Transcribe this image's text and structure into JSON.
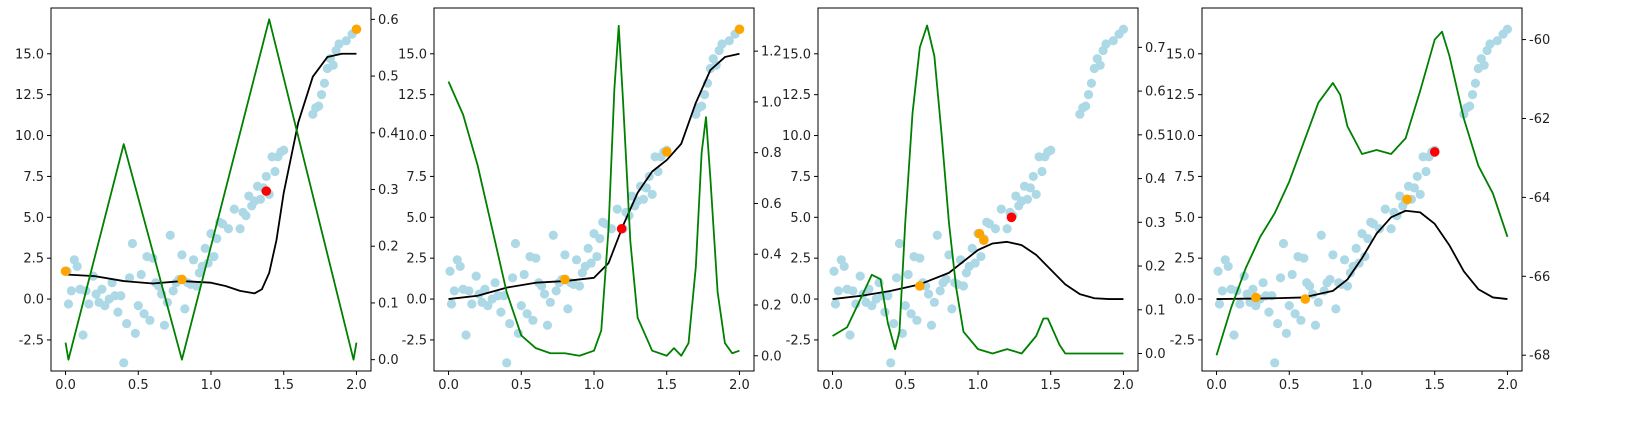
{
  "chart_data": [
    {
      "type": "scatter",
      "title": "",
      "xlabel": "",
      "ylabel": "",
      "xlim": [
        -0.1,
        2.1
      ],
      "ylim": [
        -4.4,
        17.8
      ],
      "y2lim": [
        -0.02,
        0.62
      ],
      "xticks": [
        "0.0",
        "0.5",
        "1.0",
        "1.5",
        "2.0"
      ],
      "yticks": [
        "-2.5",
        "0.0",
        "2.5",
        "5.0",
        "7.5",
        "10.0",
        "12.5",
        "15.0"
      ],
      "y2ticks": [
        "0.0",
        "0.1",
        "0.2",
        "0.3",
        "0.4",
        "0.5",
        "0.6"
      ],
      "xtick_values": [
        0,
        0.5,
        1,
        1.5,
        2
      ],
      "ytick_values": [
        -2.5,
        0,
        2.5,
        5,
        7.5,
        10,
        12.5,
        15
      ],
      "y2tick_values": [
        0,
        0.1,
        0.2,
        0.3,
        0.4,
        0.5,
        0.6
      ],
      "mean_curve": {
        "color": "#000000",
        "x": [
          0,
          0.2,
          0.4,
          0.6,
          0.8,
          1.0,
          1.1,
          1.2,
          1.3,
          1.35,
          1.4,
          1.45,
          1.5,
          1.6,
          1.7,
          1.8,
          1.9,
          2.0
        ],
        "y": [
          1.5,
          1.4,
          1.1,
          0.95,
          1.1,
          1.0,
          0.8,
          0.5,
          0.35,
          0.6,
          1.6,
          3.6,
          6.5,
          10.8,
          13.6,
          14.8,
          15.0,
          15.0
        ]
      },
      "acquisition_curve": {
        "color": "#008000",
        "axis": "right",
        "x": [
          0,
          0.02,
          0.4,
          0.8,
          1.4,
          1.98,
          2.0
        ],
        "y": [
          0.03,
          0.0,
          0.38,
          0.0,
          0.6,
          0.0,
          0.03
        ]
      },
      "observed_points": {
        "color": "#ffa500",
        "x": [
          0.0,
          0.8,
          2.0
        ],
        "y": [
          1.7,
          1.2,
          16.5
        ]
      },
      "next_point": {
        "color": "#ff0000",
        "x": [
          1.38
        ],
        "y": [
          6.6
        ]
      }
    },
    {
      "type": "scatter",
      "title": "",
      "xlabel": "",
      "ylabel": "",
      "xlim": [
        -0.1,
        2.1
      ],
      "ylim": [
        -4.4,
        17.8
      ],
      "y2lim": [
        -0.06,
        1.37
      ],
      "xticks": [
        "0.0",
        "0.5",
        "1.0",
        "1.5",
        "2.0"
      ],
      "yticks": [
        "-2.5",
        "0.0",
        "2.5",
        "5.0",
        "7.5",
        "10.0",
        "12.5",
        "15.0"
      ],
      "y2ticks": [
        "0.0",
        "0.2",
        "0.4",
        "0.6",
        "0.8",
        "1.0",
        "1.2"
      ],
      "xtick_values": [
        0,
        0.5,
        1,
        1.5,
        2
      ],
      "ytick_values": [
        -2.5,
        0,
        2.5,
        5,
        7.5,
        10,
        12.5,
        15
      ],
      "y2tick_values": [
        0,
        0.2,
        0.4,
        0.6,
        0.8,
        1.0,
        1.2
      ],
      "mean_curve": {
        "color": "#000000",
        "x": [
          0,
          0.2,
          0.4,
          0.6,
          0.8,
          1.0,
          1.1,
          1.2,
          1.3,
          1.4,
          1.5,
          1.6,
          1.7,
          1.8,
          1.9,
          2.0
        ],
        "y": [
          0.0,
          0.2,
          0.7,
          1.0,
          1.1,
          1.3,
          2.2,
          4.5,
          6.5,
          7.8,
          8.5,
          9.5,
          12.0,
          14.0,
          14.8,
          15.0
        ]
      },
      "acquisition_curve": {
        "color": "#008000",
        "axis": "right",
        "x": [
          0,
          0.1,
          0.2,
          0.3,
          0.4,
          0.5,
          0.6,
          0.7,
          0.8,
          0.9,
          1.0,
          1.05,
          1.1,
          1.14,
          1.17,
          1.2,
          1.25,
          1.3,
          1.4,
          1.5,
          1.55,
          1.6,
          1.65,
          1.7,
          1.74,
          1.77,
          1.8,
          1.85,
          1.9,
          1.95,
          2.0
        ],
        "y": [
          1.08,
          0.95,
          0.75,
          0.5,
          0.25,
          0.08,
          0.03,
          0.01,
          0.01,
          0.0,
          0.02,
          0.1,
          0.5,
          1.05,
          1.3,
          1.0,
          0.45,
          0.15,
          0.02,
          0.0,
          0.03,
          0.0,
          0.05,
          0.35,
          0.8,
          0.94,
          0.7,
          0.25,
          0.05,
          0.01,
          0.02
        ]
      },
      "observed_points": {
        "color": "#ffa500",
        "x": [
          0.8,
          1.5,
          2.0
        ],
        "y": [
          1.2,
          9.0,
          16.5
        ]
      },
      "next_point": {
        "color": "#ff0000",
        "x": [
          1.19
        ],
        "y": [
          4.3
        ]
      }
    },
    {
      "type": "scatter",
      "title": "",
      "xlabel": "",
      "ylabel": "",
      "xlim": [
        -0.1,
        2.1
      ],
      "ylim": [
        -4.4,
        17.8
      ],
      "y2lim": [
        -0.04,
        0.79
      ],
      "xticks": [
        "0.0",
        "0.5",
        "1.0",
        "1.5",
        "2.0"
      ],
      "yticks": [
        "-2.5",
        "0.0",
        "2.5",
        "5.0",
        "7.5",
        "10.0",
        "12.5",
        "15.0"
      ],
      "y2ticks": [
        "0.0",
        "0.1",
        "0.2",
        "0.3",
        "0.4",
        "0.5",
        "0.6",
        "0.7"
      ],
      "xtick_values": [
        0,
        0.5,
        1,
        1.5,
        2
      ],
      "ytick_values": [
        -2.5,
        0,
        2.5,
        5,
        7.5,
        10,
        12.5,
        15
      ],
      "y2tick_values": [
        0,
        0.1,
        0.2,
        0.3,
        0.4,
        0.5,
        0.6,
        0.7
      ],
      "mean_curve": {
        "color": "#000000",
        "x": [
          0,
          0.2,
          0.4,
          0.6,
          0.8,
          0.9,
          1.0,
          1.1,
          1.2,
          1.3,
          1.4,
          1.5,
          1.6,
          1.7,
          1.8,
          1.9,
          2.0
        ],
        "y": [
          0.0,
          0.2,
          0.5,
          0.9,
          1.6,
          2.3,
          3.0,
          3.4,
          3.5,
          3.3,
          2.7,
          1.8,
          0.9,
          0.3,
          0.05,
          0.0,
          0.0
        ]
      },
      "acquisition_curve": {
        "color": "#008000",
        "axis": "right",
        "x": [
          0,
          0.1,
          0.2,
          0.27,
          0.33,
          0.38,
          0.43,
          0.46,
          0.5,
          0.55,
          0.6,
          0.65,
          0.7,
          0.75,
          0.8,
          0.85,
          0.9,
          1.0,
          1.1,
          1.2,
          1.3,
          1.4,
          1.45,
          1.48,
          1.52,
          1.56,
          1.6,
          1.7,
          1.8,
          1.9,
          2.0
        ],
        "y": [
          0.04,
          0.06,
          0.13,
          0.18,
          0.17,
          0.07,
          0.01,
          0.05,
          0.3,
          0.55,
          0.7,
          0.75,
          0.68,
          0.5,
          0.3,
          0.15,
          0.05,
          0.01,
          0.0,
          0.01,
          0.0,
          0.04,
          0.08,
          0.08,
          0.05,
          0.02,
          0.0,
          0.0,
          0.0,
          0.0,
          0.0
        ]
      },
      "observed_points": {
        "color": "#ffa500",
        "x": [
          0.6,
          1.01,
          1.04
        ],
        "y": [
          0.8,
          4.0,
          3.6
        ]
      },
      "next_point": {
        "color": "#ff0000",
        "x": [
          1.23
        ],
        "y": [
          5.0
        ]
      }
    },
    {
      "type": "scatter",
      "title": "",
      "xlabel": "",
      "ylabel": "",
      "xlim": [
        -0.1,
        2.1
      ],
      "ylim": [
        -4.4,
        17.8
      ],
      "y2lim": [
        -68.4,
        -59.2
      ],
      "xticks": [
        "0.0",
        "0.5",
        "1.0",
        "1.5",
        "2.0"
      ],
      "yticks": [
        "-2.5",
        "0.0",
        "2.5",
        "5.0",
        "7.5",
        "10.0",
        "12.5",
        "15.0"
      ],
      "y2ticks": [
        "-68",
        "-66",
        "-64",
        "-62",
        "-60"
      ],
      "xtick_values": [
        0,
        0.5,
        1,
        1.5,
        2
      ],
      "ytick_values": [
        -2.5,
        0,
        2.5,
        5,
        7.5,
        10,
        12.5,
        15
      ],
      "y2tick_values": [
        -68,
        -66,
        -64,
        -62,
        -60
      ],
      "mean_curve": {
        "color": "#000000",
        "x": [
          0,
          0.4,
          0.6,
          0.8,
          0.9,
          1.0,
          1.1,
          1.2,
          1.3,
          1.4,
          1.5,
          1.6,
          1.7,
          1.8,
          1.9,
          2.0
        ],
        "y": [
          0.0,
          0.05,
          0.1,
          0.5,
          1.2,
          2.5,
          4.0,
          5.0,
          5.4,
          5.3,
          4.6,
          3.3,
          1.7,
          0.6,
          0.1,
          0.0
        ]
      },
      "acquisition_curve": {
        "color": "#008000",
        "axis": "right",
        "x": [
          0,
          0.1,
          0.2,
          0.3,
          0.4,
          0.5,
          0.6,
          0.7,
          0.8,
          0.85,
          0.9,
          1.0,
          1.1,
          1.2,
          1.3,
          1.4,
          1.5,
          1.55,
          1.6,
          1.7,
          1.8,
          1.9,
          2.0
        ],
        "y": [
          -68.0,
          -66.8,
          -65.8,
          -65.0,
          -64.4,
          -63.6,
          -62.6,
          -61.6,
          -61.1,
          -61.4,
          -62.2,
          -62.9,
          -62.8,
          -62.9,
          -62.5,
          -61.3,
          -60.0,
          -59.8,
          -60.4,
          -62.0,
          -63.2,
          -63.9,
          -65.0
        ]
      },
      "observed_points": {
        "color": "#ffa500",
        "x": [
          0.27,
          0.61,
          1.31
        ],
        "y": [
          0.1,
          0.0,
          6.1
        ]
      },
      "next_point": {
        "color": "#ff0000",
        "x": [
          1.5
        ],
        "y": [
          9.0
        ]
      }
    }
  ],
  "training_points": {
    "color": "#add8e6",
    "x": [
      0.01,
      0.02,
      0.04,
      0.06,
      0.08,
      0.1,
      0.12,
      0.14,
      0.16,
      0.19,
      0.21,
      0.23,
      0.25,
      0.27,
      0.3,
      0.32,
      0.34,
      0.36,
      0.38,
      0.4,
      0.42,
      0.44,
      0.46,
      0.48,
      0.5,
      0.52,
      0.54,
      0.56,
      0.58,
      0.6,
      0.62,
      0.64,
      0.66,
      0.68,
      0.7,
      0.72,
      0.74,
      0.76,
      0.78,
      0.8,
      0.82,
      0.84,
      0.86,
      0.88,
      0.9,
      0.92,
      0.94,
      0.96,
      0.98,
      1.0,
      1.02,
      1.04,
      1.06,
      1.08,
      1.12,
      1.16,
      1.2,
      1.22,
      1.24,
      1.26,
      1.28,
      1.3,
      1.32,
      1.34,
      1.36,
      1.38,
      1.4,
      1.42,
      1.44,
      1.46,
      1.48,
      1.5,
      1.7,
      1.72,
      1.74,
      1.76,
      1.78,
      1.8,
      1.82,
      1.84,
      1.86,
      1.88,
      1.93,
      1.97,
      2.0
    ],
    "y": [
      1.7,
      -0.3,
      0.5,
      2.4,
      2.0,
      0.6,
      -2.2,
      0.5,
      -0.3,
      1.4,
      0.3,
      -0.2,
      0.6,
      -0.4,
      0.0,
      1.0,
      0.2,
      -0.8,
      0.2,
      -3.9,
      -1.5,
      1.3,
      3.4,
      -2.1,
      -0.4,
      1.5,
      -0.9,
      2.6,
      -1.3,
      2.5,
      1.0,
      0.8,
      0.3,
      -1.6,
      -0.2,
      3.9,
      0.5,
      1.0,
      1.2,
      2.7,
      -0.6,
      1.0,
      0.9,
      2.4,
      0.8,
      1.6,
      2.0,
      3.1,
      2.2,
      4.0,
      2.6,
      3.7,
      4.7,
      4.6,
      4.3,
      5.5,
      4.3,
      5.3,
      5.1,
      6.3,
      5.7,
      6.0,
      6.9,
      6.1,
      6.8,
      7.5,
      6.4,
      8.7,
      7.8,
      8.7,
      9.0,
      9.1,
      11.3,
      11.7,
      11.8,
      12.5,
      13.2,
      14.1,
      14.7,
      14.3,
      15.2,
      15.6,
      15.8,
      16.2,
      16.5
    ]
  }
}
